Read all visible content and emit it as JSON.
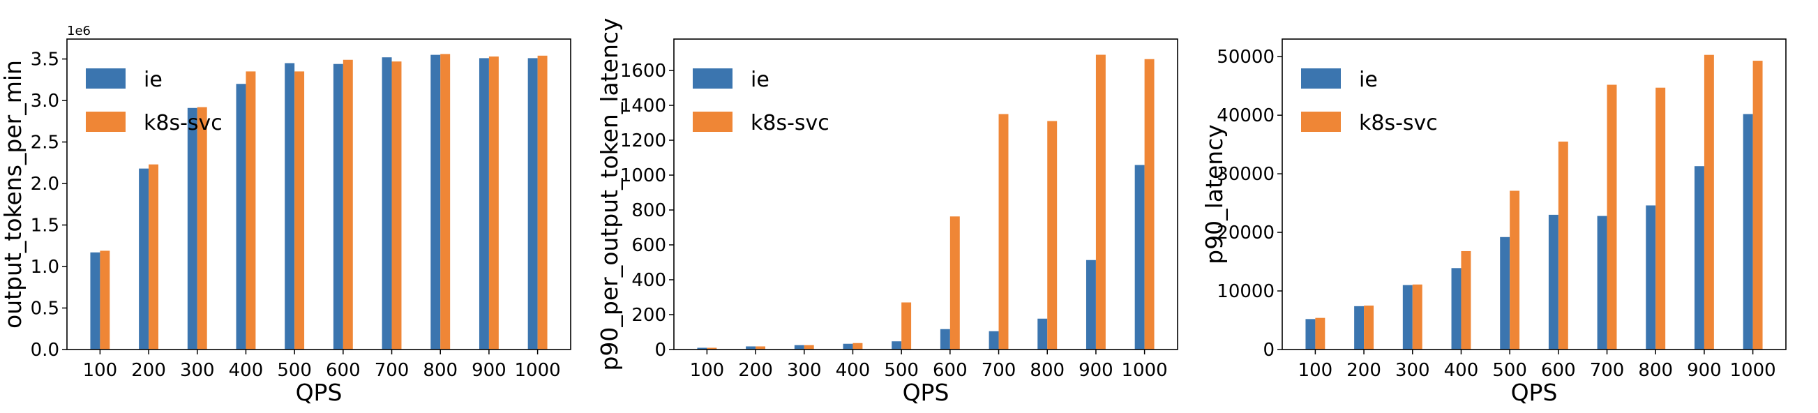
{
  "colors": {
    "ie": "#3b75af",
    "k8s-svc": "#ef8636"
  },
  "chart_data": [
    {
      "type": "bar",
      "categories": [
        "100",
        "200",
        "300",
        "400",
        "500",
        "600",
        "700",
        "800",
        "900",
        "1000"
      ],
      "xlabel": "QPS",
      "ylabel": "output_tokens_per_min",
      "offset_label": "1e6",
      "ylim": [
        0,
        3740000
      ],
      "yticks": [
        0,
        500000,
        1000000,
        1500000,
        2000000,
        2500000,
        3000000,
        3500000
      ],
      "ytick_labels": [
        "0.0",
        "0.5",
        "1.0",
        "1.5",
        "2.0",
        "2.5",
        "3.0",
        "3.5"
      ],
      "legend": "top-left",
      "grid": false,
      "series": [
        {
          "name": "ie",
          "values": [
            1170000,
            2180000,
            2910000,
            3200000,
            3450000,
            3440000,
            3520000,
            3550000,
            3510000,
            3510000
          ]
        },
        {
          "name": "k8s-svc",
          "values": [
            1190000,
            2230000,
            2920000,
            3350000,
            3350000,
            3490000,
            3470000,
            3560000,
            3530000,
            3540000
          ]
        }
      ]
    },
    {
      "type": "bar",
      "categories": [
        "100",
        "200",
        "300",
        "400",
        "500",
        "600",
        "700",
        "800",
        "900",
        "1000"
      ],
      "xlabel": "QPS",
      "ylabel": "p90_per_output_token_latency",
      "ylim": [
        0,
        1780
      ],
      "yticks": [
        0,
        200,
        400,
        600,
        800,
        1000,
        1200,
        1400,
        1600
      ],
      "ytick_labels": [
        "0",
        "200",
        "400",
        "600",
        "800",
        "1000",
        "1200",
        "1400",
        "1600"
      ],
      "legend": "top-left",
      "grid": false,
      "series": [
        {
          "name": "ie",
          "values": [
            10,
            18,
            25,
            33,
            47,
            117,
            105,
            177,
            513,
            1058
          ]
        },
        {
          "name": "k8s-svc",
          "values": [
            10,
            18,
            25,
            37,
            270,
            763,
            1350,
            1310,
            1690,
            1665
          ]
        }
      ]
    },
    {
      "type": "bar",
      "categories": [
        "100",
        "200",
        "300",
        "400",
        "500",
        "600",
        "700",
        "800",
        "900",
        "1000"
      ],
      "xlabel": "QPS",
      "ylabel": "p90_latency",
      "ylim": [
        0,
        53000
      ],
      "yticks": [
        0,
        10000,
        20000,
        30000,
        40000,
        50000
      ],
      "ytick_labels": [
        "0",
        "10000",
        "20000",
        "30000",
        "40000",
        "50000"
      ],
      "legend": "top-left",
      "grid": false,
      "series": [
        {
          "name": "ie",
          "values": [
            5200,
            7400,
            11000,
            13900,
            19200,
            23000,
            22800,
            24600,
            31300,
            40200
          ]
        },
        {
          "name": "k8s-svc",
          "values": [
            5400,
            7500,
            11100,
            16800,
            27100,
            35500,
            45200,
            44700,
            50300,
            49300
          ]
        }
      ]
    }
  ]
}
